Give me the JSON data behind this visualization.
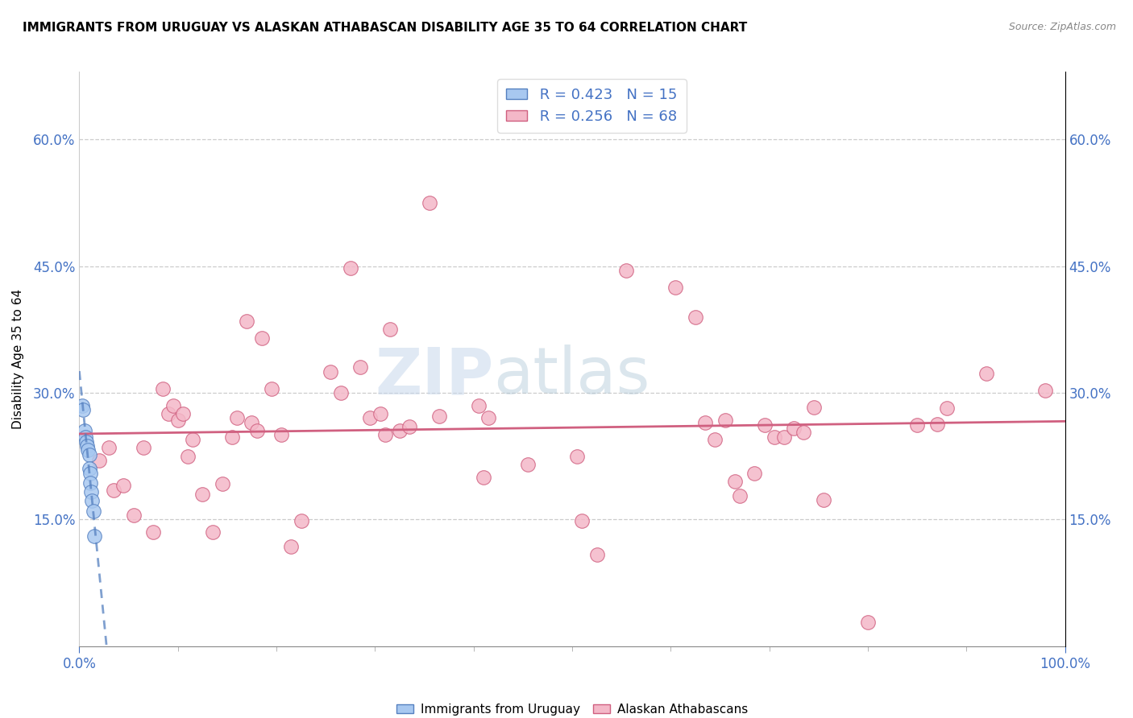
{
  "title": "IMMIGRANTS FROM URUGUAY VS ALASKAN ATHABASCAN DISABILITY AGE 35 TO 64 CORRELATION CHART",
  "source": "Source: ZipAtlas.com",
  "ylabel": "Disability Age 35 to 64",
  "xlim": [
    0.0,
    1.0
  ],
  "ylim": [
    0.0,
    0.68
  ],
  "xtick_vals": [
    0.0,
    1.0
  ],
  "xtick_labels": [
    "0.0%",
    "100.0%"
  ],
  "ytick_vals": [
    0.15,
    0.3,
    0.45,
    0.6
  ],
  "ytick_labels": [
    "15.0%",
    "30.0%",
    "45.0%",
    "60.0%"
  ],
  "blue_R": "0.423",
  "blue_N": "15",
  "pink_R": "0.256",
  "pink_N": "68",
  "legend_label_blue": "Immigrants from Uruguay",
  "legend_label_pink": "Alaskan Athabascans",
  "watermark_zip": "ZIP",
  "watermark_atlas": "atlas",
  "blue_color": "#a8c8f0",
  "pink_color": "#f4b8c8",
  "blue_edge_color": "#5580c0",
  "pink_edge_color": "#d06080",
  "blue_line_color": "#5580c0",
  "pink_line_color": "#d06080",
  "tick_color": "#4472c4",
  "blue_scatter": [
    [
      0.003,
      0.285
    ],
    [
      0.004,
      0.28
    ],
    [
      0.005,
      0.255
    ],
    [
      0.006,
      0.248
    ],
    [
      0.007,
      0.242
    ],
    [
      0.008,
      0.237
    ],
    [
      0.009,
      0.232
    ],
    [
      0.01,
      0.227
    ],
    [
      0.01,
      0.21
    ],
    [
      0.011,
      0.205
    ],
    [
      0.011,
      0.193
    ],
    [
      0.012,
      0.183
    ],
    [
      0.013,
      0.172
    ],
    [
      0.014,
      0.16
    ],
    [
      0.015,
      0.13
    ]
  ],
  "pink_scatter": [
    [
      0.02,
      0.22
    ],
    [
      0.03,
      0.235
    ],
    [
      0.035,
      0.185
    ],
    [
      0.045,
      0.19
    ],
    [
      0.055,
      0.155
    ],
    [
      0.065,
      0.235
    ],
    [
      0.075,
      0.135
    ],
    [
      0.085,
      0.305
    ],
    [
      0.09,
      0.275
    ],
    [
      0.095,
      0.285
    ],
    [
      0.1,
      0.268
    ],
    [
      0.105,
      0.275
    ],
    [
      0.11,
      0.225
    ],
    [
      0.115,
      0.245
    ],
    [
      0.125,
      0.18
    ],
    [
      0.135,
      0.135
    ],
    [
      0.145,
      0.192
    ],
    [
      0.155,
      0.248
    ],
    [
      0.16,
      0.27
    ],
    [
      0.17,
      0.385
    ],
    [
      0.175,
      0.265
    ],
    [
      0.18,
      0.255
    ],
    [
      0.185,
      0.365
    ],
    [
      0.195,
      0.305
    ],
    [
      0.205,
      0.25
    ],
    [
      0.215,
      0.118
    ],
    [
      0.225,
      0.148
    ],
    [
      0.255,
      0.325
    ],
    [
      0.265,
      0.3
    ],
    [
      0.275,
      0.448
    ],
    [
      0.285,
      0.33
    ],
    [
      0.295,
      0.27
    ],
    [
      0.305,
      0.275
    ],
    [
      0.31,
      0.25
    ],
    [
      0.315,
      0.375
    ],
    [
      0.325,
      0.255
    ],
    [
      0.335,
      0.26
    ],
    [
      0.355,
      0.525
    ],
    [
      0.365,
      0.272
    ],
    [
      0.405,
      0.285
    ],
    [
      0.41,
      0.2
    ],
    [
      0.415,
      0.27
    ],
    [
      0.455,
      0.215
    ],
    [
      0.505,
      0.225
    ],
    [
      0.51,
      0.148
    ],
    [
      0.525,
      0.108
    ],
    [
      0.555,
      0.445
    ],
    [
      0.605,
      0.425
    ],
    [
      0.625,
      0.39
    ],
    [
      0.635,
      0.265
    ],
    [
      0.645,
      0.245
    ],
    [
      0.655,
      0.268
    ],
    [
      0.665,
      0.195
    ],
    [
      0.67,
      0.178
    ],
    [
      0.685,
      0.205
    ],
    [
      0.695,
      0.262
    ],
    [
      0.705,
      0.248
    ],
    [
      0.715,
      0.248
    ],
    [
      0.725,
      0.258
    ],
    [
      0.735,
      0.253
    ],
    [
      0.745,
      0.283
    ],
    [
      0.755,
      0.173
    ],
    [
      0.8,
      0.028
    ],
    [
      0.85,
      0.262
    ],
    [
      0.87,
      0.263
    ],
    [
      0.88,
      0.282
    ],
    [
      0.92,
      0.323
    ],
    [
      0.98,
      0.303
    ]
  ]
}
